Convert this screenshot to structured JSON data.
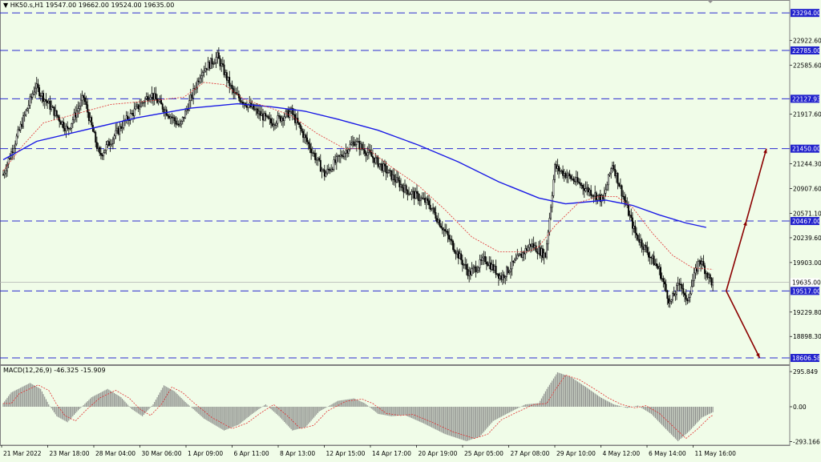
{
  "header": {
    "symbol_line": "HK50.s,H1  19547.00 19662.00 19524.00 19635.00"
  },
  "macd_header": {
    "label": "MACD(12,26,9) -46.325 -15.909"
  },
  "colors": {
    "background": "#f0fce8",
    "grid_line": "#2a2ad0",
    "candles": "#000000",
    "ma_slow": "#1a1ae6",
    "ma_fast": "#e03030",
    "arrows": "#8b0000",
    "price_badge": "#2222cc",
    "macd_hist": "#808080",
    "macd_signal": "#e03030"
  },
  "chart_data": {
    "type": "candlestick",
    "title": "HK50.s,H1  19547.00 19662.00 19524.00 19635.00",
    "ohlc_last": {
      "open": 19547.0,
      "high": 19662.0,
      "low": 19524.0,
      "close": 19635.0
    },
    "x_tick_labels": [
      "21 Mar 2022",
      "23 Mar 18:00",
      "28 Mar 04:00",
      "30 Mar 06:00",
      "1 Apr 09:00",
      "6 Apr 11:00",
      "8 Apr 13:00",
      "12 Apr 15:00",
      "14 Apr 17:00",
      "20 Apr 19:00",
      "25 Apr 05:00",
      "27 Apr 08:00",
      "29 Apr 10:00",
      "4 May 12:00",
      "6 May 14:00",
      "11 May 16:00"
    ],
    "y_tick_labels": [
      "22922.60",
      "22585.60",
      "21917.60",
      "21244.30",
      "20907.60",
      "20571.10",
      "20239.60",
      "19903.00",
      "19229.80",
      "18898.30"
    ],
    "ylim": [
      18520,
      23470
    ],
    "levels": [
      {
        "label": "23294.00",
        "value": 23294.0
      },
      {
        "label": "22785.00",
        "value": 22785.0
      },
      {
        "label": "22127.93",
        "value": 22127.93
      },
      {
        "label": "21450.00",
        "value": 21450.0
      },
      {
        "label": "20467.00",
        "value": 20467.0
      },
      {
        "label": "19517.00",
        "value": 19517.0
      },
      {
        "label": "18606.58",
        "value": 18606.58
      }
    ],
    "current_price": {
      "label": "19635.00",
      "value": 19635.0
    },
    "segments": [
      {
        "x0": 0,
        "x1": 24,
        "start": 21100,
        "end": 22300
      },
      {
        "x0": 24,
        "x1": 48,
        "start": 22300,
        "end": 21700
      },
      {
        "x0": 48,
        "x1": 60,
        "start": 21700,
        "end": 22150
      },
      {
        "x0": 60,
        "x1": 72,
        "start": 22150,
        "end": 21350
      },
      {
        "x0": 72,
        "x1": 90,
        "start": 21350,
        "end": 21800
      },
      {
        "x0": 90,
        "x1": 110,
        "start": 21800,
        "end": 22200
      },
      {
        "x0": 110,
        "x1": 132,
        "start": 22200,
        "end": 21750
      },
      {
        "x0": 132,
        "x1": 148,
        "start": 21750,
        "end": 22500
      },
      {
        "x0": 148,
        "x1": 160,
        "start": 22500,
        "end": 22700
      },
      {
        "x0": 160,
        "x1": 172,
        "start": 22700,
        "end": 22200
      },
      {
        "x0": 172,
        "x1": 200,
        "start": 22200,
        "end": 21800
      },
      {
        "x0": 200,
        "x1": 215,
        "start": 21800,
        "end": 21950
      },
      {
        "x0": 215,
        "x1": 240,
        "start": 21950,
        "end": 21100
      },
      {
        "x0": 240,
        "x1": 262,
        "start": 21100,
        "end": 21550
      },
      {
        "x0": 262,
        "x1": 272,
        "start": 21550,
        "end": 21400
      },
      {
        "x0": 272,
        "x1": 300,
        "start": 21400,
        "end": 20900
      },
      {
        "x0": 300,
        "x1": 318,
        "start": 20900,
        "end": 20700
      },
      {
        "x0": 318,
        "x1": 348,
        "start": 20700,
        "end": 19750
      },
      {
        "x0": 348,
        "x1": 360,
        "start": 19750,
        "end": 19950
      },
      {
        "x0": 360,
        "x1": 372,
        "start": 19950,
        "end": 19700
      },
      {
        "x0": 372,
        "x1": 394,
        "start": 19700,
        "end": 20150
      },
      {
        "x0": 394,
        "x1": 405,
        "start": 20150,
        "end": 20000
      },
      {
        "x0": 405,
        "x1": 412,
        "start": 20000,
        "end": 21200
      },
      {
        "x0": 412,
        "x1": 432,
        "start": 21200,
        "end": 20950
      },
      {
        "x0": 432,
        "x1": 448,
        "start": 20950,
        "end": 20750
      },
      {
        "x0": 448,
        "x1": 455,
        "start": 20750,
        "end": 21250
      },
      {
        "x0": 455,
        "x1": 472,
        "start": 21250,
        "end": 20300
      },
      {
        "x0": 472,
        "x1": 490,
        "start": 20300,
        "end": 19800
      },
      {
        "x0": 490,
        "x1": 498,
        "start": 19800,
        "end": 19350
      },
      {
        "x0": 498,
        "x1": 506,
        "start": 19350,
        "end": 19650
      },
      {
        "x0": 506,
        "x1": 510,
        "start": 19650,
        "end": 19350
      },
      {
        "x0": 510,
        "x1": 520,
        "start": 19350,
        "end": 19950
      },
      {
        "x0": 520,
        "x1": 530,
        "start": 19950,
        "end": 19600
      }
    ],
    "ma_slow_points": [
      [
        0,
        21300
      ],
      [
        25,
        21550
      ],
      [
        60,
        21700
      ],
      [
        100,
        21870
      ],
      [
        140,
        22000
      ],
      [
        175,
        22060
      ],
      [
        200,
        22020
      ],
      [
        225,
        21960
      ],
      [
        250,
        21850
      ],
      [
        280,
        21700
      ],
      [
        310,
        21500
      ],
      [
        340,
        21270
      ],
      [
        370,
        21000
      ],
      [
        400,
        20780
      ],
      [
        420,
        20700
      ],
      [
        450,
        20750
      ],
      [
        470,
        20680
      ],
      [
        490,
        20550
      ],
      [
        510,
        20440
      ],
      [
        525,
        20380
      ]
    ],
    "ma_fast_points": [
      [
        0,
        21150
      ],
      [
        15,
        21500
      ],
      [
        30,
        21800
      ],
      [
        50,
        21900
      ],
      [
        80,
        22050
      ],
      [
        110,
        22100
      ],
      [
        135,
        22150
      ],
      [
        150,
        22350
      ],
      [
        165,
        22320
      ],
      [
        180,
        22120
      ],
      [
        200,
        22000
      ],
      [
        215,
        21900
      ],
      [
        235,
        21650
      ],
      [
        255,
        21450
      ],
      [
        272,
        21450
      ],
      [
        290,
        21200
      ],
      [
        310,
        20950
      ],
      [
        330,
        20620
      ],
      [
        350,
        20250
      ],
      [
        370,
        20050
      ],
      [
        392,
        20050
      ],
      [
        400,
        20120
      ],
      [
        412,
        20400
      ],
      [
        430,
        20720
      ],
      [
        445,
        20800
      ],
      [
        458,
        20800
      ],
      [
        470,
        20650
      ],
      [
        485,
        20300
      ],
      [
        500,
        20000
      ],
      [
        515,
        19830
      ],
      [
        530,
        19810
      ]
    ],
    "projection_arrows": {
      "origin": {
        "t": 540,
        "value": 19517
      },
      "up_mid": {
        "t": 555,
        "value": 20467
      },
      "up_end": {
        "t": 570,
        "value": 21450
      },
      "down_end": {
        "t": 565,
        "value": 18606.58
      }
    },
    "macd": {
      "name": "MACD(12,26,9)",
      "main": -46.325,
      "signal": -15.909,
      "ylim": [
        -310,
        310
      ],
      "y_tick_labels": [
        "295.849",
        "0.00",
        "-293.166"
      ],
      "hist_shape": [
        [
          0,
          30
        ],
        [
          6,
          120
        ],
        [
          20,
          200
        ],
        [
          28,
          150
        ],
        [
          34,
          20
        ],
        [
          40,
          -80
        ],
        [
          48,
          -130
        ],
        [
          56,
          -30
        ],
        [
          66,
          80
        ],
        [
          78,
          150
        ],
        [
          88,
          80
        ],
        [
          96,
          -20
        ],
        [
          104,
          -80
        ],
        [
          112,
          20
        ],
        [
          120,
          180
        ],
        [
          128,
          130
        ],
        [
          136,
          40
        ],
        [
          150,
          -100
        ],
        [
          165,
          -200
        ],
        [
          176,
          -150
        ],
        [
          186,
          -60
        ],
        [
          196,
          20
        ],
        [
          206,
          -80
        ],
        [
          216,
          -200
        ],
        [
          226,
          -170
        ],
        [
          236,
          -40
        ],
        [
          250,
          50
        ],
        [
          262,
          70
        ],
        [
          270,
          30
        ],
        [
          280,
          -60
        ],
        [
          290,
          -80
        ],
        [
          300,
          -70
        ],
        [
          314,
          -140
        ],
        [
          330,
          -230
        ],
        [
          346,
          -290
        ],
        [
          356,
          -250
        ],
        [
          366,
          -120
        ],
        [
          376,
          -60
        ],
        [
          390,
          20
        ],
        [
          400,
          30
        ],
        [
          406,
          150
        ],
        [
          414,
          290
        ],
        [
          424,
          250
        ],
        [
          436,
          160
        ],
        [
          446,
          80
        ],
        [
          456,
          20
        ],
        [
          466,
          -10
        ],
        [
          474,
          10
        ],
        [
          484,
          -60
        ],
        [
          496,
          -200
        ],
        [
          504,
          -290
        ],
        [
          512,
          -210
        ],
        [
          522,
          -90
        ],
        [
          530,
          -46
        ]
      ]
    }
  }
}
